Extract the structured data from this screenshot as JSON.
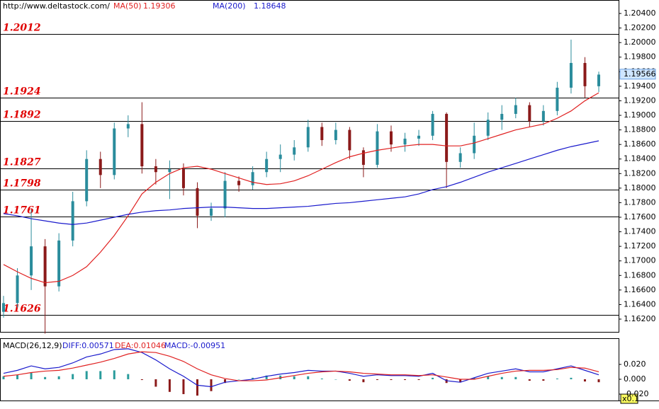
{
  "chart_data": [
    {
      "type": "candlestick",
      "source": "http://www.deltastock.com/",
      "ylim": [
        1.16015,
        1.20585
      ],
      "yticks": [
        {
          "value": 1.162,
          "label": "1.16200"
        },
        {
          "value": 1.164,
          "label": "1.16400"
        },
        {
          "value": 1.166,
          "label": "1.16600"
        },
        {
          "value": 1.168,
          "label": "1.16800"
        },
        {
          "value": 1.17,
          "label": "1.17000"
        },
        {
          "value": 1.172,
          "label": "1.17200"
        },
        {
          "value": 1.174,
          "label": "1.17400"
        },
        {
          "value": 1.176,
          "label": "1.17600"
        },
        {
          "value": 1.178,
          "label": "1.17800"
        },
        {
          "value": 1.18,
          "label": "1.18000"
        },
        {
          "value": 1.182,
          "label": "1.18200"
        },
        {
          "value": 1.184,
          "label": "1.18400"
        },
        {
          "value": 1.186,
          "label": "1.18600"
        },
        {
          "value": 1.188,
          "label": "1.18800"
        },
        {
          "value": 1.19,
          "label": "1.19000"
        },
        {
          "value": 1.192,
          "label": "1.19200"
        },
        {
          "value": 1.194,
          "label": "1.19400"
        },
        {
          "value": 1.196,
          "label": "1.19600"
        },
        {
          "value": 1.198,
          "label": "1.19800"
        },
        {
          "value": 1.2,
          "label": "1.20000"
        },
        {
          "value": 1.202,
          "label": "1.20200"
        },
        {
          "value": 1.204,
          "label": "1.20400"
        }
      ],
      "up_color": "#2a8c9c",
      "down_color": "#8b1a1a",
      "open": [
        1.163,
        1.1642,
        1.168,
        1.172,
        1.1665,
        1.1728,
        1.1782,
        1.184,
        1.1818,
        1.1882,
        1.1888,
        1.183,
        1.1822,
        1.1826,
        1.18,
        1.1762,
        1.1772,
        1.181,
        1.1804,
        1.1822,
        1.184,
        1.1846,
        1.1856,
        1.1884,
        1.1866,
        1.188,
        1.1852,
        1.1832,
        1.1878,
        1.186,
        1.1868,
        1.1872,
        1.1902,
        1.1836,
        1.1848,
        1.1872,
        1.1894,
        1.1902,
        1.1914,
        1.1892,
        1.1906,
        1.1938,
        1.1972,
        1.194
      ],
      "high": [
        1.1652,
        1.169,
        1.177,
        1.173,
        1.1738,
        1.1795,
        1.1852,
        1.185,
        1.189,
        1.19,
        1.1918,
        1.184,
        1.1838,
        1.1834,
        1.1808,
        1.178,
        1.1822,
        1.1816,
        1.183,
        1.185,
        1.186,
        1.1866,
        1.1894,
        1.189,
        1.189,
        1.1884,
        1.1856,
        1.1888,
        1.1886,
        1.1876,
        1.188,
        1.1906,
        1.1904,
        1.1856,
        1.189,
        1.1904,
        1.1914,
        1.1924,
        1.1918,
        1.1914,
        1.1946,
        1.2004,
        1.198,
        1.196
      ],
      "low": [
        1.1622,
        1.1636,
        1.166,
        1.16,
        1.1658,
        1.172,
        1.1775,
        1.18,
        1.1812,
        1.187,
        1.182,
        1.1805,
        1.1785,
        1.179,
        1.1745,
        1.1755,
        1.176,
        1.1795,
        1.1798,
        1.1815,
        1.1822,
        1.1838,
        1.185,
        1.1858,
        1.186,
        1.184,
        1.1815,
        1.1828,
        1.185,
        1.185,
        1.1858,
        1.1866,
        1.18,
        1.1828,
        1.184,
        1.1866,
        1.188,
        1.1896,
        1.1884,
        1.1886,
        1.19,
        1.193,
        1.1924,
        1.1932
      ],
      "close": [
        1.1642,
        1.168,
        1.172,
        1.1665,
        1.1728,
        1.1782,
        1.184,
        1.1818,
        1.1882,
        1.1888,
        1.183,
        1.1822,
        1.1826,
        1.18,
        1.1762,
        1.1772,
        1.181,
        1.1804,
        1.1822,
        1.184,
        1.1846,
        1.1856,
        1.1884,
        1.1866,
        1.188,
        1.1852,
        1.1832,
        1.1878,
        1.186,
        1.1868,
        1.1872,
        1.1902,
        1.1836,
        1.1848,
        1.1872,
        1.1894,
        1.1902,
        1.1914,
        1.1892,
        1.1906,
        1.1938,
        1.1972,
        1.194,
        1.1956
      ],
      "series": [
        {
          "name": "MA(50)",
          "last": 1.19306,
          "color": "#e02020",
          "values": [
            1.1695,
            1.1685,
            1.1676,
            1.167,
            1.1672,
            1.168,
            1.1692,
            1.1712,
            1.1735,
            1.1762,
            1.1792,
            1.1808,
            1.182,
            1.1828,
            1.183,
            1.1826,
            1.182,
            1.1814,
            1.1808,
            1.1805,
            1.1806,
            1.181,
            1.1817,
            1.1826,
            1.1835,
            1.1843,
            1.1848,
            1.1852,
            1.1855,
            1.1858,
            1.186,
            1.186,
            1.1858,
            1.1858,
            1.1862,
            1.1868,
            1.1874,
            1.188,
            1.1884,
            1.1888,
            1.1896,
            1.1906,
            1.192,
            1.1931
          ]
        },
        {
          "name": "MA(200)",
          "last": 1.18648,
          "color": "#1a1acc",
          "values": [
            1.1765,
            1.1762,
            1.1758,
            1.1755,
            1.1752,
            1.175,
            1.1752,
            1.1756,
            1.176,
            1.1764,
            1.1767,
            1.1769,
            1.177,
            1.1772,
            1.1773,
            1.1774,
            1.1774,
            1.1773,
            1.1772,
            1.1772,
            1.1773,
            1.1774,
            1.1775,
            1.1777,
            1.1779,
            1.178,
            1.1782,
            1.1784,
            1.1786,
            1.1788,
            1.1792,
            1.1798,
            1.1802,
            1.1808,
            1.1815,
            1.1822,
            1.1828,
            1.1834,
            1.184,
            1.1846,
            1.1852,
            1.1857,
            1.1861,
            1.1865
          ]
        }
      ],
      "levels": [
        1.2012,
        1.1924,
        1.1892,
        1.1827,
        1.1798,
        1.1761,
        1.1626
      ],
      "level_color": "#e00000",
      "last_price": {
        "value": 1.19566,
        "label": "1.19566"
      }
    },
    {
      "type": "macd",
      "title": "MACD(26,12,9)",
      "ylim": [
        -0.0286,
        0.0533
      ],
      "yticks": [
        {
          "value": 0.02,
          "label": "0.020"
        },
        {
          "value": 0,
          "label": "0.000"
        },
        {
          "value": -0.02,
          "label": "-0.020"
        }
      ],
      "scale_note": "x0.1",
      "histogram": {
        "name": "MACD:-0.00951",
        "color": "#1a1acc",
        "up_color": "#2a9c9c",
        "down_color": "#8b1a1a",
        "values": [
          0.004,
          0.006,
          0.009,
          0.003,
          0.004,
          0.007,
          0.011,
          0.011,
          0.012,
          0.007,
          -0.001,
          -0.01,
          -0.017,
          -0.02,
          -0.022,
          -0.016,
          -0.005,
          0.0,
          0.002,
          0.005,
          0.005,
          0.004,
          0.004,
          0.001,
          0.0,
          -0.002,
          -0.004,
          -0.001,
          -0.001,
          -0.001,
          -0.001,
          0.002,
          -0.005,
          -0.004,
          0.002,
          0.004,
          0.003,
          0.003,
          -0.002,
          -0.002,
          0.001,
          0.002,
          -0.003,
          -0.004
        ]
      },
      "series": [
        {
          "name": "DIFF:0.00571",
          "color": "#1a1acc",
          "values": [
            0.008,
            0.012,
            0.018,
            0.014,
            0.016,
            0.022,
            0.03,
            0.034,
            0.04,
            0.041,
            0.036,
            0.026,
            0.014,
            0.004,
            -0.008,
            -0.01,
            -0.004,
            -0.002,
            0.0,
            0.004,
            0.007,
            0.009,
            0.012,
            0.011,
            0.011,
            0.008,
            0.004,
            0.006,
            0.005,
            0.005,
            0.004,
            0.008,
            -0.002,
            -0.004,
            0.002,
            0.008,
            0.011,
            0.014,
            0.01,
            0.01,
            0.014,
            0.018,
            0.012,
            0.006
          ]
        },
        {
          "name": "DEA:0.01046",
          "color": "#e02020",
          "values": [
            0.004,
            0.006,
            0.009,
            0.011,
            0.012,
            0.015,
            0.019,
            0.023,
            0.028,
            0.034,
            0.037,
            0.036,
            0.031,
            0.024,
            0.014,
            0.006,
            0.001,
            -0.002,
            -0.002,
            -0.001,
            0.002,
            0.005,
            0.008,
            0.01,
            0.011,
            0.01,
            0.008,
            0.007,
            0.006,
            0.006,
            0.005,
            0.006,
            0.003,
            0.0,
            0.0,
            0.004,
            0.008,
            0.011,
            0.012,
            0.012,
            0.013,
            0.016,
            0.015,
            0.01
          ]
        }
      ]
    }
  ]
}
